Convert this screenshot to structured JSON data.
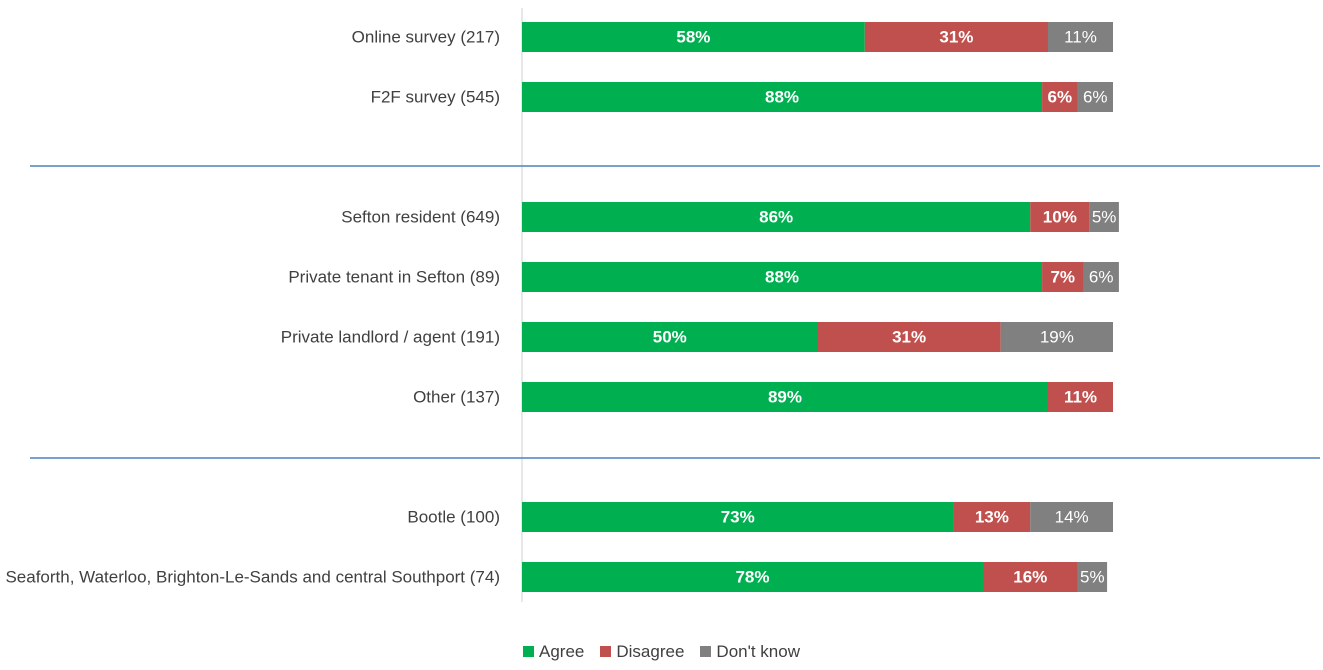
{
  "chart_data": {
    "type": "bar",
    "orientation": "horizontal",
    "stacked": true,
    "categories": [
      "Online survey (217)",
      "F2F survey (545)",
      null,
      "Sefton resident (649)",
      "Private tenant in Sefton (89)",
      "Private landlord / agent (191)",
      "Other (137)",
      null,
      "Bootle (100)",
      "Seaforth, Waterloo, Brighton-Le-Sands and central Southport (74)"
    ],
    "xlim": [
      0,
      100
    ],
    "series": [
      {
        "name": "Agree",
        "color": "#00b050",
        "values": [
          58,
          88,
          null,
          86,
          88,
          50,
          89,
          null,
          73,
          78
        ],
        "value_labels": [
          "58%",
          "88%",
          null,
          "86%",
          "88%",
          "50%",
          "89%",
          null,
          "73%",
          "78%"
        ]
      },
      {
        "name": "Disagree",
        "color": "#c0504d",
        "values": [
          31,
          6,
          null,
          10,
          7,
          31,
          11,
          null,
          13,
          16
        ],
        "value_labels": [
          "31%",
          "6%",
          null,
          "10%",
          "7%",
          "31%",
          "11%",
          null,
          "13%",
          "16%"
        ]
      },
      {
        "name": "Don't know",
        "color": "#808080",
        "values": [
          11,
          6,
          null,
          5,
          6,
          19,
          null,
          null,
          14,
          5
        ],
        "value_labels": [
          "11%",
          "6%",
          null,
          "5%",
          "6%",
          "19%",
          null,
          null,
          "14%",
          "5%"
        ]
      }
    ]
  }
}
